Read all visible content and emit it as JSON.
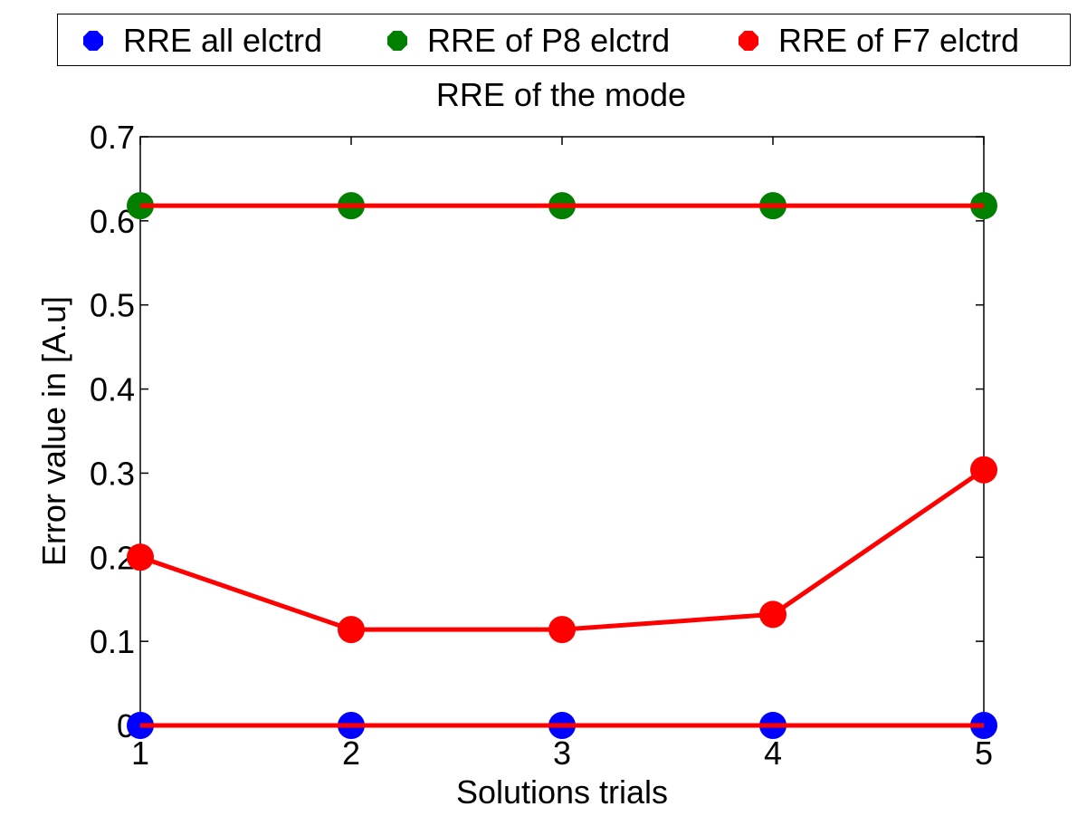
{
  "chart_data": {
    "type": "line",
    "title": "RRE of the mode",
    "xlabel": "Solutions trials",
    "ylabel": "Error value in [A.u]",
    "x": [
      1,
      2,
      3,
      4,
      5
    ],
    "xlim": [
      1,
      5
    ],
    "ylim": [
      0,
      0.7
    ],
    "xticks": [
      "1",
      "2",
      "3",
      "4",
      "5"
    ],
    "yticks": [
      "0",
      "0.1",
      "0.2",
      "0.3",
      "0.4",
      "0.5",
      "0.6",
      "0.7"
    ],
    "grid": false,
    "legend_position": "top, outside, horizontal",
    "series": [
      {
        "name": "RRE all elctrd",
        "color": "#0000ff",
        "values": [
          0,
          0,
          0,
          0,
          0
        ]
      },
      {
        "name": "RRE of P8 elctrd",
        "color": "#007f00",
        "values": [
          0.618,
          0.618,
          0.618,
          0.618,
          0.618
        ]
      },
      {
        "name": "RRE of F7 elctrd",
        "color": "#ff0000",
        "values": [
          0.2,
          0.114,
          0.114,
          0.132,
          0.304
        ]
      }
    ],
    "line_color": "#ff0000"
  }
}
